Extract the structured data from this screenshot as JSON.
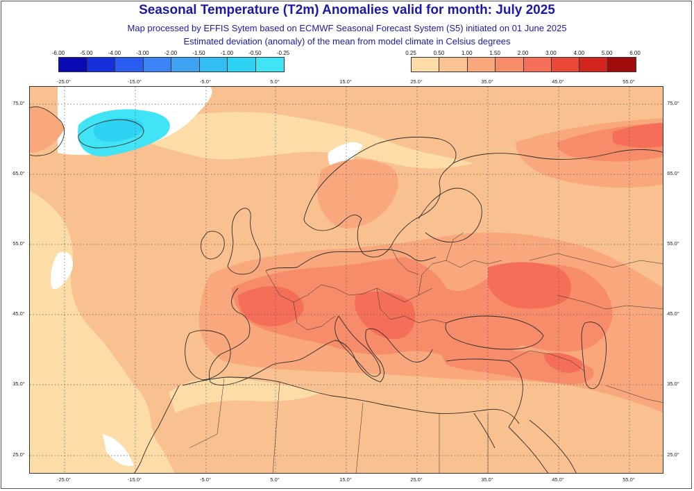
{
  "header": {
    "title": "Seasonal Temperature (T2m) Anomalies valid for month: July 2025",
    "subtitle1": "Map processed by EFFIS Sytem based on ECMWF Seasonal Forecast System (S5) initiated on 01 June 2025",
    "subtitle2": "Estimated deviation (anomaly) of the mean from model climate in Celsius degrees"
  },
  "legend_cold": {
    "labels": [
      "-6.00",
      "-5.00",
      "-4.00",
      "-3.00",
      "-2.00",
      "-1.50",
      "-1.00",
      "-0.50",
      "-0.25"
    ],
    "colors": [
      "#0a0ab4",
      "#1430dc",
      "#2a5cf0",
      "#3b84f5",
      "#3fa3f2",
      "#33bdf0",
      "#2ed2f2",
      "#40e4f4"
    ]
  },
  "legend_warm": {
    "labels": [
      "0.25",
      "0.50",
      "1.00",
      "1.50",
      "2.00",
      "3.00",
      "4.00",
      "5.00",
      "6.00"
    ],
    "colors": [
      "#fddca8",
      "#fbc393",
      "#f9a77c",
      "#f78c6a",
      "#f56e58",
      "#ec4838",
      "#d2251e",
      "#a00c0c"
    ]
  },
  "map": {
    "longitude_labels": [
      "-25.0°",
      "-15.0°",
      "-5.0°",
      "5.0°",
      "15.0°",
      "25.0°",
      "35.0°",
      "45.0°",
      "55.0°"
    ],
    "latitude_labels": [
      "75.0°",
      "65.0°",
      "55.0°",
      "45.0°",
      "35.0°",
      "25.0°"
    ],
    "colors": {
      "neutral": "#ffffff",
      "warm_025": "#fddca8",
      "warm_050": "#fbc393",
      "warm_100": "#f9a77c",
      "warm_150": "#f78c6a",
      "warm_200": "#f56e58",
      "cold_025": "#40e4f4",
      "cold_050": "#2ed2f2",
      "coast": "#2b2b2b",
      "grid": "#555555"
    }
  }
}
